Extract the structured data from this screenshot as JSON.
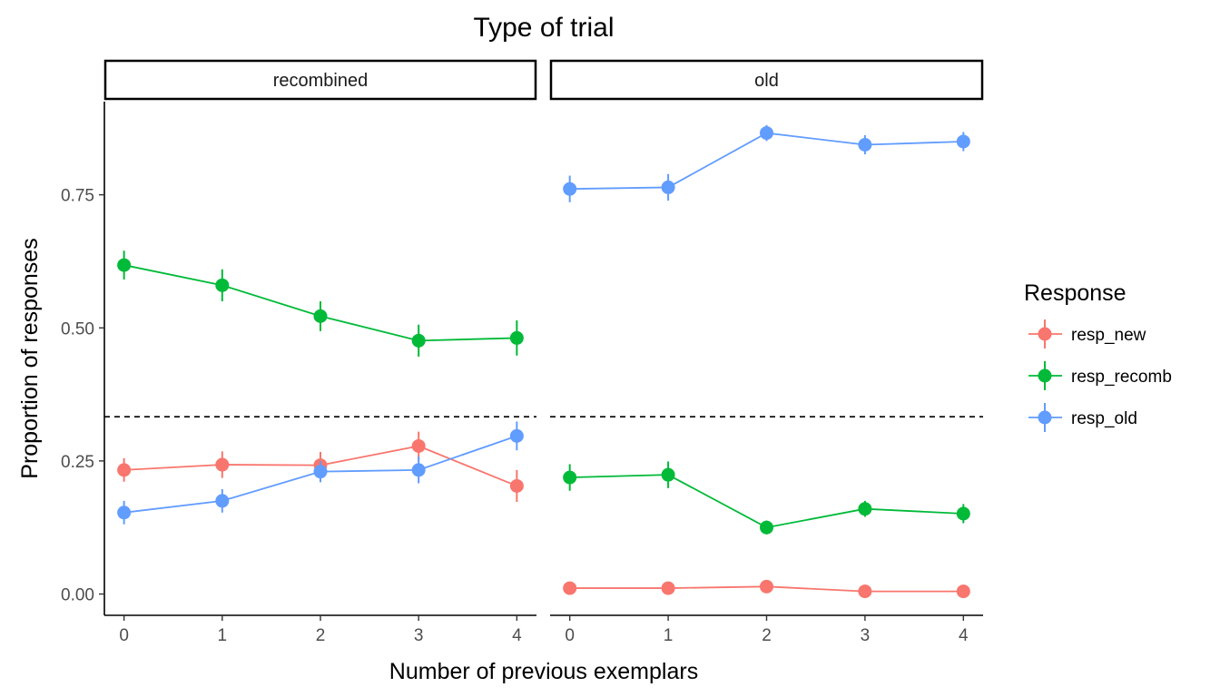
{
  "colors": {
    "resp_new": "#F8766D",
    "resp_recomb": "#00BA38",
    "resp_old": "#619CFF",
    "reference_line": "#000000"
  },
  "chart_data": {
    "type": "line",
    "title": "Type of trial",
    "xlabel": "Number of previous exemplars",
    "ylabel": "Proportion of responses",
    "x": [
      0,
      1,
      2,
      3,
      4
    ],
    "xlim": [
      -0.2,
      4.2
    ],
    "ylim": [
      -0.04,
      0.925
    ],
    "yticks": [
      0.0,
      0.25,
      0.5,
      0.75
    ],
    "ytick_labels": [
      "0.00",
      "0.25",
      "0.50",
      "0.75"
    ],
    "reference_line": {
      "y": 0.333,
      "style": "dashed"
    },
    "legend": {
      "title": "Response",
      "position": "right",
      "entries": [
        "resp_new",
        "resp_recomb",
        "resp_old"
      ]
    },
    "panels": [
      {
        "label": "recombined",
        "series": [
          {
            "name": "resp_new",
            "values": [
              0.233,
              0.243,
              0.242,
              0.278,
              0.203
            ],
            "err": [
              0.022,
              0.025,
              0.025,
              0.027,
              0.03
            ]
          },
          {
            "name": "resp_recomb",
            "values": [
              0.618,
              0.58,
              0.522,
              0.476,
              0.481
            ],
            "err": [
              0.027,
              0.03,
              0.028,
              0.03,
              0.033
            ]
          },
          {
            "name": "resp_old",
            "values": [
              0.153,
              0.175,
              0.23,
              0.233,
              0.297
            ],
            "err": [
              0.022,
              0.022,
              0.02,
              0.025,
              0.027
            ]
          }
        ]
      },
      {
        "label": "old",
        "series": [
          {
            "name": "resp_new",
            "values": [
              0.011,
              0.011,
              0.014,
              0.005,
              0.005
            ],
            "err": [
              0.005,
              0.005,
              0.007,
              0.004,
              0.003
            ]
          },
          {
            "name": "resp_recomb",
            "values": [
              0.219,
              0.224,
              0.125,
              0.16,
              0.151
            ],
            "err": [
              0.025,
              0.025,
              0.013,
              0.015,
              0.018
            ]
          },
          {
            "name": "resp_old",
            "values": [
              0.761,
              0.764,
              0.866,
              0.844,
              0.85
            ],
            "err": [
              0.025,
              0.025,
              0.015,
              0.018,
              0.018
            ]
          }
        ]
      }
    ]
  }
}
